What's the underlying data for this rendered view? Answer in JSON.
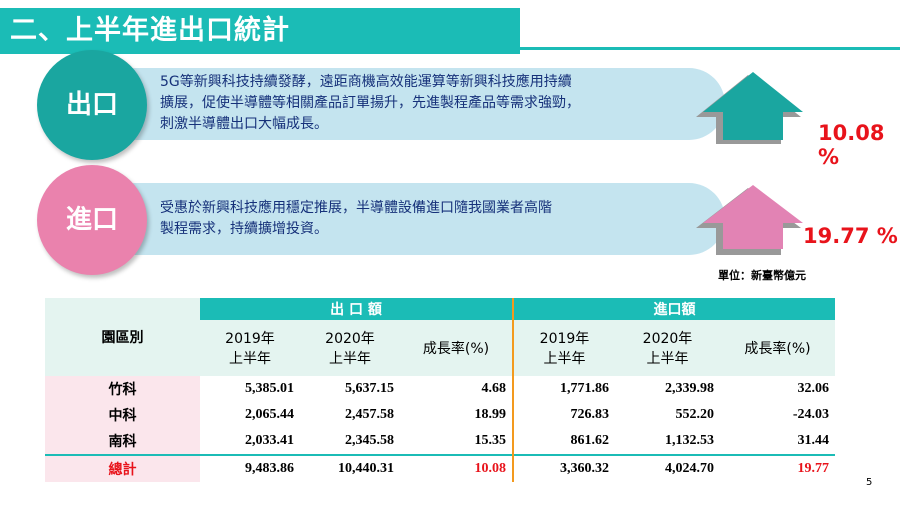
{
  "title": "二、上半年進出口統計",
  "export": {
    "label": "出口",
    "lines": [
      "5G等新興科技持續發酵，遠距商機高效能運算等新興科技應用持續",
      "擴展，促使半導體等相關產品訂單揚升，先進製程產品等需求強勁，",
      "刺激半導體出口大幅成長。"
    ],
    "growth": "10.08 %"
  },
  "import": {
    "label": "進口",
    "lines": [
      "受惠於新興科技應用穩定推展，半導體設備進口隨我國業者高階",
      "製程需求，持續擴增投資。"
    ],
    "growth": "19.77 %"
  },
  "unit": "單位：新臺幣億元",
  "table": {
    "region_header": "園區別",
    "groups": [
      "出 口 額",
      "進口額"
    ],
    "subheaders": [
      [
        "2019年",
        "上半年"
      ],
      [
        "2020年",
        "上半年"
      ],
      [
        "成長率(%)"
      ],
      [
        "2019年",
        "上半年"
      ],
      [
        "2020年",
        "上半年"
      ],
      [
        "成長率(%)"
      ]
    ],
    "rows": [
      [
        "竹科",
        "5,385.01",
        "5,637.15",
        "4.68",
        "1,771.86",
        "2,339.98",
        "32.06"
      ],
      [
        "中科",
        "2,065.44",
        "2,457.58",
        "18.99",
        "726.83",
        "552.20",
        "-24.03"
      ],
      [
        "南科",
        "2,033.41",
        "2,345.58",
        "15.35",
        "861.62",
        "1,132.53",
        "31.44"
      ],
      [
        "總計",
        "9,483.86",
        "10,440.31",
        "10.08",
        "3,360.32",
        "4,024.70",
        "19.77"
      ]
    ]
  },
  "page": "5"
}
